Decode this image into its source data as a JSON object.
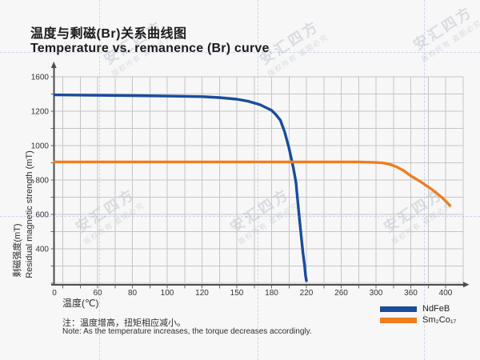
{
  "page": {
    "title_zh": "温度与剩磁(Br)关系曲线图",
    "title_en": "Temperature vs. remanence (Br) curve",
    "note_zh": "注：温度增高，扭矩相应减小。",
    "note_en": "Note: As the temperature increases, the torque decreases accordingly.",
    "watermark": {
      "brand": "安汇四方",
      "notice": "版权所有 盗图必究"
    }
  },
  "chart_data": {
    "type": "line",
    "title": "温度与剩磁(Br)关系曲线图 / Temperature vs. remanence (Br) curve",
    "xlabel": "温度(℃)",
    "ylabel_zh": "剩磁强度(mT)",
    "ylabel_en": "Residual magnetic strength (mT)",
    "x_ticks": [
      0,
      60,
      80,
      100,
      120,
      150,
      180,
      220,
      260,
      300,
      360,
      400
    ],
    "y_ticks": [
      1600,
      1200,
      1000,
      800,
      600,
      400
    ],
    "y_axis_bottom_value": 0,
    "axis_note": "tick labels are evenly spaced on screen although the numeric steps are non-linear",
    "grid": true,
    "legend_position": "bottom-right",
    "colors": {
      "grid": "#c6c6c6",
      "axis": "#4d4d4d",
      "ndfeb": "#1a4b9d",
      "sm2co17": "#ef7d20"
    },
    "series": [
      {
        "name": "NdFeB",
        "color": "#1a4b9d",
        "points": [
          [
            0,
            1390
          ],
          [
            40,
            1387
          ],
          [
            80,
            1381
          ],
          [
            100,
            1376
          ],
          [
            120,
            1369
          ],
          [
            135,
            1358
          ],
          [
            150,
            1340
          ],
          [
            160,
            1315
          ],
          [
            170,
            1275
          ],
          [
            180,
            1210
          ],
          [
            185,
            1180
          ],
          [
            190,
            1148
          ],
          [
            195,
            1080
          ],
          [
            200,
            985
          ],
          [
            205,
            870
          ],
          [
            208,
            788
          ],
          [
            210,
            680
          ],
          [
            212,
            575
          ],
          [
            214,
            475
          ],
          [
            216,
            360
          ],
          [
            218,
            200
          ],
          [
            219,
            90
          ],
          [
            220,
            30
          ]
        ]
      },
      {
        "name": "Sm₂Co₁₇",
        "color": "#ef7d20",
        "points": [
          [
            0,
            905
          ],
          [
            100,
            905
          ],
          [
            200,
            905
          ],
          [
            280,
            905
          ],
          [
            300,
            902
          ],
          [
            312,
            899
          ],
          [
            324,
            891
          ],
          [
            336,
            876
          ],
          [
            348,
            854
          ],
          [
            360,
            824
          ],
          [
            372,
            788
          ],
          [
            384,
            746
          ],
          [
            396,
            698
          ],
          [
            405,
            652
          ]
        ]
      }
    ]
  }
}
